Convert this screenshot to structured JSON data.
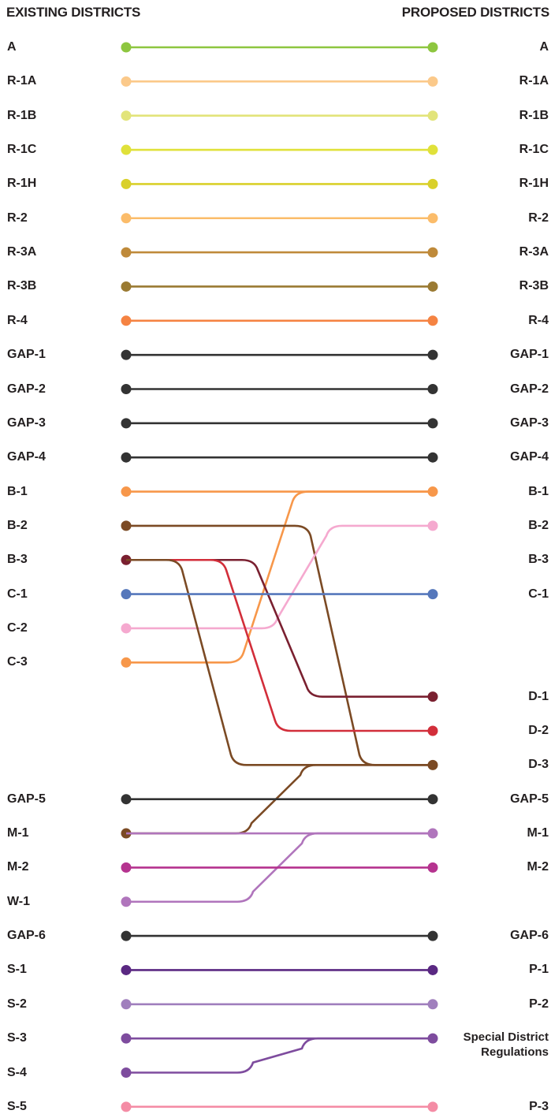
{
  "headers": {
    "existing": "EXISTING DISTRICTS",
    "proposed": "PROPOSED DISTRICTS"
  },
  "existing": [
    "A",
    "R-1A",
    "R-1B",
    "R-1C",
    "R-1H",
    "R-2",
    "R-3A",
    "R-3B",
    "R-4",
    "GAP-1",
    "GAP-2",
    "GAP-3",
    "GAP-4",
    "B-1",
    "B-2",
    "B-3",
    "C-1",
    "C-2",
    "C-3",
    "",
    "",
    "",
    "GAP-5",
    "M-1",
    "M-2",
    "W-1",
    "GAP-6",
    "S-1",
    "S-2",
    "S-3",
    "S-4",
    "S-5"
  ],
  "proposed": [
    "A",
    "R-1A",
    "R-1B",
    "R-1C",
    "R-1H",
    "R-2",
    "R-3A",
    "R-3B",
    "R-4",
    "GAP-1",
    "GAP-2",
    "GAP-3",
    "GAP-4",
    "B-1",
    "B-2",
    "B-3",
    "C-1",
    "",
    "",
    "D-1",
    "D-2",
    "D-3",
    "GAP-5",
    "M-1",
    "M-2",
    "",
    "GAP-6",
    "P-1",
    "P-2",
    "Special District\nRegulations",
    "",
    "P-3"
  ],
  "connections": [
    {
      "from": "A",
      "to": "A",
      "color": "#8dc63f"
    },
    {
      "from": "R-1A",
      "to": "R-1A",
      "color": "#fbc98a"
    },
    {
      "from": "R-1B",
      "to": "R-1B",
      "color": "#e2e47a"
    },
    {
      "from": "R-1C",
      "to": "R-1C",
      "color": "#e0e13a"
    },
    {
      "from": "R-1H",
      "to": "R-1H",
      "color": "#d9d02a"
    },
    {
      "from": "R-2",
      "to": "R-2",
      "color": "#fbbc6a"
    },
    {
      "from": "R-3A",
      "to": "R-3A",
      "color": "#bf8a3a"
    },
    {
      "from": "R-3B",
      "to": "R-3B",
      "color": "#9a7a32"
    },
    {
      "from": "R-4",
      "to": "R-4",
      "color": "#f58342"
    },
    {
      "from": "GAP-1",
      "to": "GAP-1",
      "color": "#333333"
    },
    {
      "from": "GAP-2",
      "to": "GAP-2",
      "color": "#333333"
    },
    {
      "from": "GAP-3",
      "to": "GAP-3",
      "color": "#333333"
    },
    {
      "from": "GAP-4",
      "to": "GAP-4",
      "color": "#333333"
    },
    {
      "from": "B-1",
      "to": "B-1",
      "color": "#f7974a"
    },
    {
      "from": "C-3",
      "to": "B-1",
      "color": "#f7974a"
    },
    {
      "from": "B-2",
      "to": "D-3",
      "color": "#7b4a24"
    },
    {
      "from": "C-2",
      "to": "B-2",
      "color": "#f5a9cf"
    },
    {
      "from": "B-3",
      "to": "D-1",
      "color": "#7a2030"
    },
    {
      "from": "B-3",
      "to": "D-2",
      "color": "#d22e3a"
    },
    {
      "from": "B-3",
      "to": "D-3",
      "color": "#7b4a24"
    },
    {
      "from": "C-1",
      "to": "C-1",
      "color": "#5577bb"
    },
    {
      "from": "M-1",
      "to": "D-3",
      "color": "#7b4a24"
    },
    {
      "from": "GAP-5",
      "to": "GAP-5",
      "color": "#333333"
    },
    {
      "from": "M-1",
      "to": "M-1",
      "color": "#b075bc"
    },
    {
      "from": "W-1",
      "to": "M-1",
      "color": "#b075bc"
    },
    {
      "from": "M-2",
      "to": "M-2",
      "color": "#b5338f"
    },
    {
      "from": "GAP-6",
      "to": "GAP-6",
      "color": "#333333"
    },
    {
      "from": "S-1",
      "to": "P-1",
      "color": "#5a2882"
    },
    {
      "from": "S-2",
      "to": "P-2",
      "color": "#a07fbd"
    },
    {
      "from": "S-3",
      "to": "Special District\nRegulations",
      "color": "#7e4c9e"
    },
    {
      "from": "S-4",
      "to": "Special District\nRegulations",
      "color": "#7e4c9e"
    },
    {
      "from": "S-5",
      "to": "P-3",
      "color": "#f48ca5"
    }
  ]
}
